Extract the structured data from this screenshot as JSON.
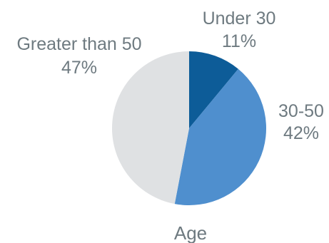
{
  "chart_data": {
    "type": "pie",
    "title": "Age",
    "slices": [
      {
        "label": "Under 30",
        "value": 11,
        "value_label": "11%",
        "color": "#0d5c98"
      },
      {
        "label": "30-50",
        "value": 42,
        "value_label": "42%",
        "color": "#4f8fce"
      },
      {
        "label": "Greater than 50",
        "value": 47,
        "value_label": "47%",
        "color": "#dfe1e3"
      }
    ],
    "start_angle": "12 o'clock",
    "direction": "clockwise"
  }
}
